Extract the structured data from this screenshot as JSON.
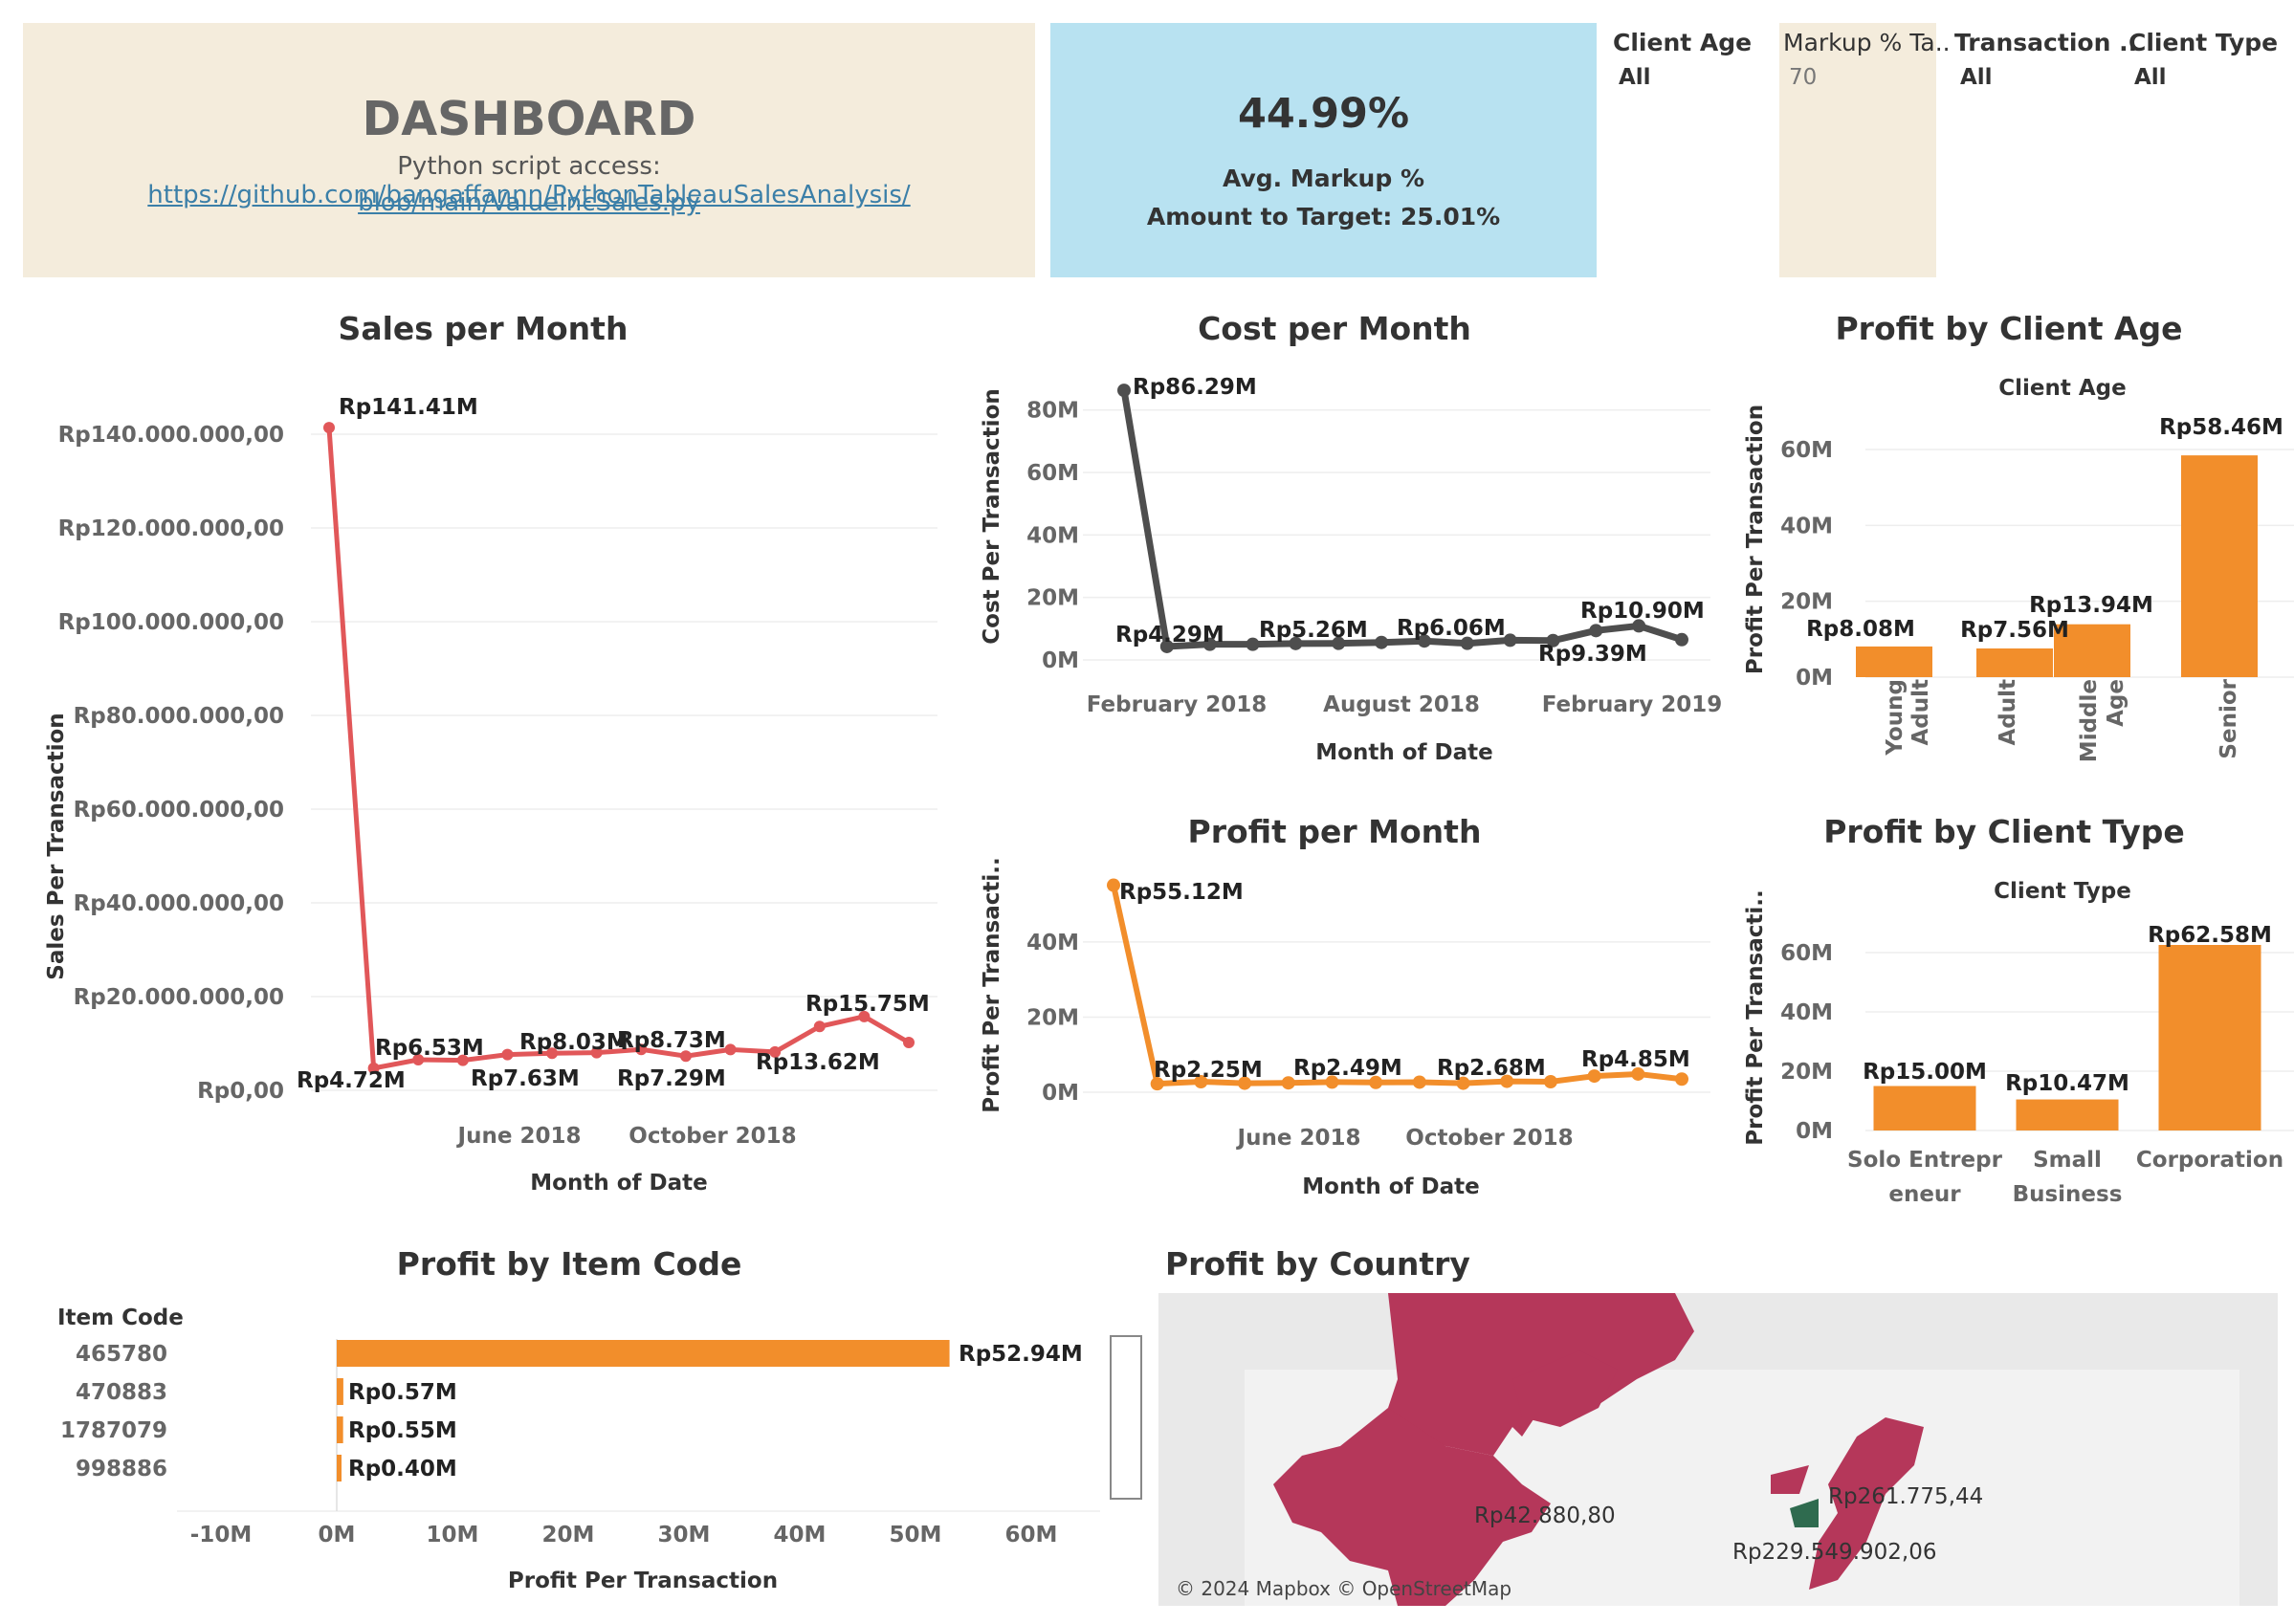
{
  "header": {
    "title": "DASHBOARD",
    "script_prefix": "Python script access: ",
    "link_line1": "https://github.com/bangaffannn/PythonTableauSalesAnalysis/",
    "link_line2": "blob/main/ValueIncSales.py"
  },
  "kpi": {
    "value": "44.99%",
    "label": "Avg. Markup %",
    "target": "Amount to Target: 25.01%"
  },
  "filters": {
    "client_age": {
      "label": "Client Age",
      "value": "All"
    },
    "markup_target": {
      "label": "Markup % Ta..",
      "value": "70"
    },
    "transaction": {
      "label": "Transaction ..",
      "value": "All"
    },
    "client_type": {
      "label": "Client Type",
      "value": "All"
    }
  },
  "colors": {
    "sales": "#e15759",
    "cost": "#4e4e4e",
    "profit": "#f28e2b",
    "map_region": "#b5375a",
    "map_alt": "#2f6b4f",
    "header_bg": "#f4ecdc",
    "kpi_bg": "#b8e2f1"
  },
  "charts": {
    "sales": {
      "title": "Sales per Month",
      "ylabel": "Sales Per Transaction",
      "xlabel": "Month of Date",
      "yticks": [
        "Rp140.000.000,00",
        "Rp120.000.000,00",
        "Rp100.000.000,00",
        "Rp80.000.000,00",
        "Rp60.000.000,00",
        "Rp40.000.000,00",
        "Rp20.000.000,00",
        "Rp0,00"
      ],
      "xticks": [
        "June 2018",
        "October 2018"
      ],
      "labels": [
        "Rp141.41M",
        "Rp4.72M",
        "Rp6.53M",
        "Rp7.63M",
        "Rp8.03M",
        "Rp8.73M",
        "Rp7.29M",
        "Rp13.62M",
        "Rp15.75M"
      ]
    },
    "cost": {
      "title": "Cost per Month",
      "ylabel": "Cost Per Transaction",
      "xlabel": "Month of Date",
      "yticks": [
        "80M",
        "60M",
        "40M",
        "20M",
        "0M"
      ],
      "xticks": [
        "February 2018",
        "August 2018",
        "February 2019"
      ],
      "labels": [
        "Rp86.29M",
        "Rp4.29M",
        "Rp5.26M",
        "Rp6.06M",
        "Rp9.39M",
        "Rp10.90M"
      ]
    },
    "profit": {
      "title": "Profit per Month",
      "ylabel": "Profit Per Transacti..",
      "xlabel": "Month of Date",
      "yticks": [
        "40M",
        "20M",
        "0M"
      ],
      "xticks": [
        "June 2018",
        "October 2018"
      ],
      "labels": [
        "Rp55.12M",
        "Rp2.25M",
        "Rp2.49M",
        "Rp2.68M",
        "Rp4.85M"
      ]
    },
    "age": {
      "title": "Profit by Client Age",
      "header": "Client Age",
      "ylabel": "Profit Per Transaction",
      "yticks": [
        "60M",
        "40M",
        "20M",
        "0M"
      ],
      "cats": [
        "Young Adult",
        "Adult",
        "Middle Age",
        "Senior"
      ],
      "labels": [
        "Rp8.08M",
        "Rp7.56M",
        "Rp13.94M",
        "Rp58.46M"
      ]
    },
    "type": {
      "title": "Profit by Client Type",
      "header": "Client Type",
      "ylabel": "Profit Per Transacti..",
      "yticks": [
        "60M",
        "40M",
        "20M",
        "0M"
      ],
      "cats": [
        "Solo Entrepreneur",
        "Small Business",
        "Corporation"
      ],
      "labels": [
        "Rp15.00M",
        "Rp10.47M",
        "Rp62.58M"
      ]
    },
    "item": {
      "title": "Profit by Item Code",
      "header": "Item Code",
      "xlabel": "Profit Per Transaction",
      "xticks": [
        "-10M",
        "0M",
        "10M",
        "20M",
        "30M",
        "40M",
        "50M",
        "60M"
      ],
      "cats": [
        "465780",
        "470883",
        "1787079",
        "998886"
      ],
      "labels": [
        "Rp52.94M",
        "Rp0.57M",
        "Rp0.55M",
        "Rp0.40M"
      ]
    },
    "country": {
      "title": "Profit by Country",
      "labels": [
        "Rp42.880,80",
        "Rp261.775,44",
        "Rp229.549.902,06"
      ],
      "attribution": "© 2024 Mapbox © OpenStreetMap"
    }
  },
  "chart_data": [
    {
      "type": "line",
      "title": "Sales per Month",
      "xlabel": "Month of Date",
      "ylabel": "Sales Per Transaction",
      "x": [
        "2018-01",
        "2018-02",
        "2018-03",
        "2018-04",
        "2018-05",
        "2018-06",
        "2018-07",
        "2018-08",
        "2018-09",
        "2018-10",
        "2018-11",
        "2018-12",
        "2019-01",
        "2019-02"
      ],
      "values": [
        141.41,
        4.72,
        6.53,
        6.4,
        7.63,
        7.9,
        8.03,
        8.73,
        7.29,
        8.7,
        8.2,
        13.62,
        15.75,
        10.2
      ],
      "unit": "million Rp",
      "ylim": [
        0,
        150
      ]
    },
    {
      "type": "line",
      "title": "Cost per Month",
      "xlabel": "Month of Date",
      "ylabel": "Cost Per Transaction",
      "x": [
        "2018-01",
        "2018-02",
        "2018-03",
        "2018-04",
        "2018-05",
        "2018-06",
        "2018-07",
        "2018-08",
        "2018-09",
        "2018-10",
        "2018-11",
        "2018-12",
        "2019-01",
        "2019-02"
      ],
      "values": [
        86.29,
        4.29,
        5.0,
        5.0,
        5.26,
        5.3,
        5.6,
        6.06,
        5.3,
        6.3,
        6.2,
        9.39,
        10.9,
        6.5
      ],
      "unit": "million Rp",
      "ylim": [
        0,
        90
      ]
    },
    {
      "type": "line",
      "title": "Profit per Month",
      "xlabel": "Month of Date",
      "ylabel": "Profit Per Transacti..",
      "x": [
        "2018-01",
        "2018-02",
        "2018-03",
        "2018-04",
        "2018-05",
        "2018-06",
        "2018-07",
        "2018-08",
        "2018-09",
        "2018-10",
        "2018-11",
        "2018-12",
        "2019-01",
        "2019-02"
      ],
      "values": [
        55.12,
        2.25,
        2.8,
        2.4,
        2.49,
        2.7,
        2.6,
        2.68,
        2.4,
        2.9,
        2.8,
        4.3,
        4.85,
        3.5
      ],
      "unit": "million Rp",
      "ylim": [
        0,
        55
      ]
    },
    {
      "type": "bar",
      "title": "Profit by Client Age",
      "ylabel": "Profit Per Transaction",
      "categories": [
        "Young Adult",
        "Adult",
        "Middle Age",
        "Senior"
      ],
      "values": [
        8.08,
        7.56,
        13.94,
        58.46
      ],
      "unit": "million Rp",
      "ylim": [
        0,
        65
      ]
    },
    {
      "type": "bar",
      "title": "Profit by Client Type",
      "ylabel": "Profit Per Transacti..",
      "categories": [
        "Solo Entrepreneur",
        "Small Business",
        "Corporation"
      ],
      "values": [
        15.0,
        10.47,
        62.58
      ],
      "unit": "million Rp",
      "ylim": [
        0,
        70
      ]
    },
    {
      "type": "bar",
      "title": "Profit by Item Code",
      "xlabel": "Profit Per Transaction",
      "categories": [
        "465780",
        "470883",
        "1787079",
        "998886"
      ],
      "values": [
        52.94,
        0.57,
        0.55,
        0.4
      ],
      "unit": "million Rp",
      "xlim": [
        -10,
        60
      ]
    }
  ]
}
